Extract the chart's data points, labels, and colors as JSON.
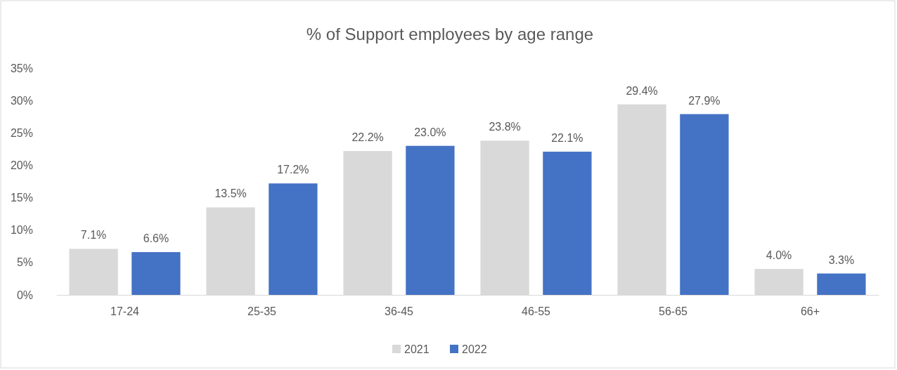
{
  "chart_data": {
    "type": "bar",
    "title": "% of Support employees by age range",
    "categories": [
      "17-24",
      "25-35",
      "36-45",
      "46-55",
      "56-65",
      "66+"
    ],
    "series": [
      {
        "name": "2021",
        "color": "#d9d9d9",
        "values": [
          7.1,
          13.5,
          22.2,
          23.8,
          29.4,
          4.0
        ],
        "value_labels": [
          "7.1%",
          "13.5%",
          "22.2%",
          "23.8%",
          "29.4%",
          "4.0%"
        ]
      },
      {
        "name": "2022",
        "color": "#4472c4",
        "values": [
          6.6,
          17.2,
          23.0,
          22.1,
          27.9,
          3.3
        ],
        "value_labels": [
          "6.6%",
          "17.2%",
          "23.0%",
          "22.1%",
          "27.9%",
          "3.3%"
        ]
      }
    ],
    "ylim": [
      0,
      35
    ],
    "yticks": [
      {
        "value": 0,
        "label": "0%"
      },
      {
        "value": 5,
        "label": "5%"
      },
      {
        "value": 10,
        "label": "10%"
      },
      {
        "value": 15,
        "label": "15%"
      },
      {
        "value": 20,
        "label": "20%"
      },
      {
        "value": 25,
        "label": "25%"
      },
      {
        "value": 30,
        "label": "30%"
      },
      {
        "value": 35,
        "label": "35%"
      }
    ],
    "grid": false,
    "legend": "bottom"
  }
}
